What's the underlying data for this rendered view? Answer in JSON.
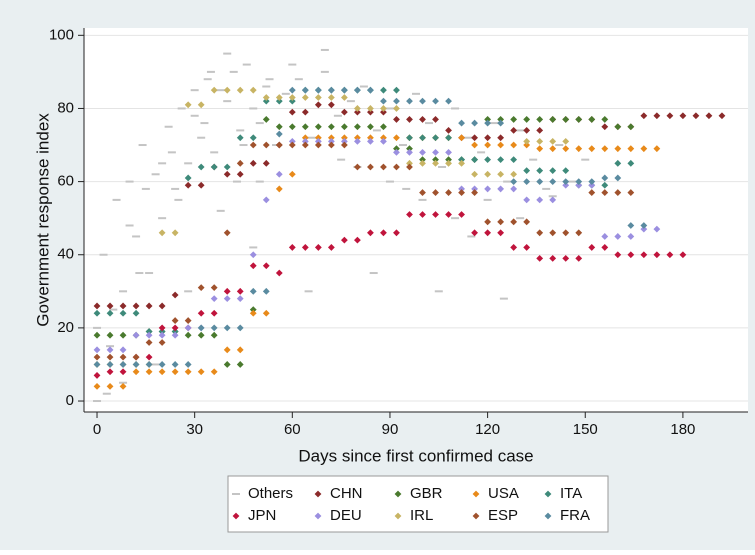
{
  "chart_data": {
    "type": "scatter",
    "x_label": "Days since first confirmed case",
    "y_label": "Government response index",
    "xlim": [
      -4,
      200
    ],
    "ylim": [
      -3,
      102
    ],
    "xticks": [
      0,
      30,
      60,
      90,
      120,
      150,
      180
    ],
    "yticks": [
      0,
      20,
      40,
      60,
      80,
      100
    ],
    "grid": true,
    "legend": "bottom",
    "series": [
      {
        "name": "Others",
        "color": "#c4c4c4",
        "x": [
          0,
          2,
          4,
          6,
          8,
          10,
          12,
          14,
          16,
          18,
          20,
          22,
          24,
          26,
          28,
          30,
          32,
          34,
          36,
          38,
          40,
          42,
          44,
          46,
          48,
          50,
          52,
          55,
          58,
          62,
          66,
          70,
          74,
          78,
          82,
          86,
          90,
          94,
          98,
          102,
          106,
          110,
          114,
          118,
          122,
          126,
          130,
          134,
          138,
          142,
          146,
          150,
          0,
          5,
          10,
          15,
          20,
          25,
          30,
          35,
          40,
          45,
          50,
          60,
          70,
          80,
          90,
          100,
          110,
          120,
          130,
          140,
          8,
          18,
          28,
          38,
          48,
          65,
          85,
          105,
          125,
          3,
          13,
          23,
          33,
          43,
          53,
          75,
          95,
          115
        ],
        "values": [
          0,
          40,
          15,
          55,
          30,
          60,
          45,
          70,
          35,
          62,
          50,
          75,
          58,
          80,
          65,
          78,
          72,
          88,
          68,
          85,
          82,
          90,
          74,
          92,
          80,
          76,
          86,
          70,
          84,
          88,
          72,
          90,
          78,
          82,
          86,
          74,
          80,
          70,
          84,
          76,
          64,
          80,
          72,
          68,
          76,
          60,
          74,
          66,
          58,
          70,
          60,
          66,
          20,
          25,
          48,
          58,
          65,
          55,
          85,
          90,
          95,
          70,
          60,
          92,
          96,
          64,
          60,
          55,
          50,
          55,
          50,
          56,
          5,
          10,
          30,
          52,
          42,
          30,
          35,
          30,
          28,
          2,
          35,
          68,
          76,
          60,
          88,
          66,
          58,
          45
        ]
      },
      {
        "name": "CHN",
        "color": "#8b2a2a",
        "x": [
          0,
          4,
          8,
          12,
          16,
          20,
          24,
          28,
          32,
          36,
          40,
          44,
          48,
          52,
          56,
          60,
          64,
          68,
          72,
          76,
          80,
          84,
          88,
          92,
          96,
          100,
          104,
          108,
          112,
          116,
          120,
          124,
          128,
          132,
          136,
          140,
          144,
          148,
          152,
          156,
          160,
          164,
          168,
          172,
          176,
          180,
          184,
          188,
          192
        ],
        "values": [
          26,
          26,
          26,
          26,
          26,
          26,
          29,
          59,
          59,
          64,
          62,
          62,
          65,
          65,
          70,
          79,
          79,
          81,
          81,
          79,
          79,
          79,
          79,
          77,
          77,
          77,
          77,
          74,
          72,
          72,
          72,
          72,
          74,
          74,
          74,
          77,
          77,
          77,
          77,
          75,
          75,
          75,
          78,
          78,
          78,
          78,
          78,
          78,
          78
        ]
      },
      {
        "name": "GBR",
        "color": "#4a7a2e",
        "x": [
          0,
          4,
          8,
          12,
          16,
          20,
          24,
          28,
          32,
          36,
          40,
          44,
          48,
          52,
          56,
          60,
          64,
          68,
          72,
          76,
          80,
          84,
          88,
          92,
          96,
          100,
          104,
          108,
          112,
          116,
          120,
          124,
          128,
          132,
          136,
          140,
          144,
          148,
          152,
          156,
          160,
          164
        ],
        "values": [
          18,
          18,
          18,
          18,
          19,
          19,
          19,
          18,
          18,
          18,
          10,
          10,
          25,
          77,
          75,
          75,
          75,
          75,
          75,
          75,
          75,
          75,
          75,
          69,
          69,
          66,
          66,
          66,
          66,
          66,
          77,
          77,
          77,
          77,
          77,
          77,
          77,
          77,
          77,
          77,
          75,
          75
        ]
      },
      {
        "name": "USA",
        "color": "#e88a1a",
        "x": [
          0,
          4,
          8,
          12,
          16,
          20,
          24,
          28,
          32,
          36,
          40,
          44,
          48,
          52,
          56,
          60,
          64,
          68,
          72,
          76,
          80,
          84,
          88,
          92,
          96,
          100,
          104,
          108,
          112,
          116,
          120,
          124,
          128,
          132,
          136,
          140,
          144,
          148,
          152,
          156,
          160,
          164,
          168,
          172
        ],
        "values": [
          4,
          4,
          4,
          8,
          8,
          8,
          8,
          8,
          8,
          8,
          14,
          14,
          24,
          24,
          58,
          62,
          72,
          72,
          72,
          72,
          72,
          72,
          72,
          72,
          72,
          72,
          72,
          72,
          72,
          70,
          70,
          70,
          70,
          70,
          69,
          69,
          69,
          69,
          69,
          69,
          69,
          69,
          69,
          69
        ]
      },
      {
        "name": "ITA",
        "color": "#3e8a7a",
        "x": [
          0,
          4,
          8,
          12,
          16,
          20,
          24,
          28,
          32,
          36,
          40,
          44,
          48,
          52,
          56,
          60,
          64,
          68,
          72,
          76,
          80,
          84,
          88,
          92,
          96,
          100,
          104,
          108,
          112,
          116,
          120,
          124,
          128,
          132,
          136,
          140,
          144,
          148,
          152,
          156,
          160,
          164
        ],
        "values": [
          24,
          24,
          24,
          24,
          19,
          19,
          19,
          61,
          64,
          64,
          64,
          72,
          72,
          82,
          82,
          82,
          85,
          85,
          85,
          85,
          85,
          85,
          85,
          85,
          72,
          72,
          72,
          72,
          66,
          66,
          66,
          66,
          66,
          63,
          63,
          63,
          63,
          59,
          59,
          59,
          65,
          65
        ]
      },
      {
        "name": "JPN",
        "color": "#c0143c",
        "x": [
          0,
          4,
          8,
          12,
          16,
          20,
          24,
          28,
          32,
          36,
          40,
          44,
          48,
          52,
          56,
          60,
          64,
          68,
          72,
          76,
          80,
          84,
          88,
          92,
          96,
          100,
          104,
          108,
          112,
          116,
          120,
          124,
          128,
          132,
          136,
          140,
          144,
          148,
          152,
          156,
          160,
          164,
          168,
          172,
          176,
          180
        ],
        "values": [
          7,
          8,
          8,
          12,
          12,
          20,
          20,
          20,
          24,
          24,
          30,
          30,
          37,
          37,
          35,
          42,
          42,
          42,
          42,
          44,
          44,
          46,
          46,
          46,
          51,
          51,
          51,
          51,
          51,
          46,
          46,
          46,
          42,
          42,
          39,
          39,
          39,
          39,
          42,
          42,
          40,
          40,
          40,
          40,
          40,
          40
        ]
      },
      {
        "name": "DEU",
        "color": "#9b8fe0",
        "x": [
          0,
          4,
          8,
          12,
          16,
          20,
          24,
          28,
          32,
          36,
          40,
          44,
          48,
          52,
          56,
          60,
          64,
          68,
          72,
          76,
          80,
          84,
          88,
          92,
          96,
          100,
          104,
          108,
          112,
          116,
          120,
          124,
          128,
          132,
          136,
          140,
          144,
          148,
          152,
          156,
          160,
          164,
          168,
          172
        ],
        "values": [
          14,
          14,
          14,
          18,
          18,
          18,
          18,
          20,
          20,
          28,
          28,
          28,
          40,
          55,
          62,
          71,
          71,
          71,
          71,
          71,
          71,
          71,
          71,
          68,
          68,
          68,
          68,
          68,
          58,
          58,
          58,
          58,
          58,
          55,
          55,
          55,
          59,
          59,
          59,
          45,
          45,
          45,
          47,
          47
        ]
      },
      {
        "name": "IRL",
        "color": "#c8b464",
        "x": [
          0,
          4,
          8,
          12,
          16,
          20,
          24,
          28,
          32,
          36,
          40,
          44,
          48,
          52,
          56,
          60,
          64,
          68,
          72,
          76,
          80,
          84,
          88,
          92,
          96,
          100,
          104,
          108,
          112,
          116,
          120,
          124,
          128,
          132,
          136,
          140,
          144
        ],
        "values": [
          10,
          10,
          10,
          10,
          10,
          46,
          46,
          81,
          81,
          85,
          85,
          85,
          85,
          83,
          83,
          83,
          83,
          83,
          83,
          83,
          80,
          80,
          80,
          80,
          65,
          65,
          65,
          65,
          65,
          62,
          62,
          62,
          62,
          71,
          71,
          71,
          71
        ]
      },
      {
        "name": "ESP",
        "color": "#a0522d",
        "x": [
          0,
          4,
          8,
          12,
          16,
          20,
          24,
          28,
          32,
          36,
          40,
          44,
          48,
          52,
          56,
          60,
          64,
          68,
          72,
          76,
          80,
          84,
          88,
          92,
          96,
          100,
          104,
          108,
          112,
          116,
          120,
          124,
          128,
          132,
          136,
          140,
          144,
          148,
          152,
          156,
          160,
          164
        ],
        "values": [
          12,
          12,
          12,
          12,
          16,
          16,
          22,
          22,
          31,
          31,
          46,
          65,
          70,
          70,
          70,
          70,
          70,
          70,
          70,
          70,
          64,
          64,
          64,
          64,
          64,
          57,
          57,
          57,
          57,
          57,
          49,
          49,
          49,
          49,
          46,
          46,
          46,
          46,
          57,
          57,
          57,
          57
        ]
      },
      {
        "name": "FRA",
        "color": "#5a8ba0",
        "x": [
          0,
          4,
          8,
          12,
          16,
          20,
          24,
          28,
          32,
          36,
          40,
          44,
          48,
          52,
          56,
          60,
          64,
          68,
          72,
          76,
          80,
          84,
          88,
          92,
          96,
          100,
          104,
          108,
          112,
          116,
          120,
          124,
          128,
          132,
          136,
          140,
          144,
          148,
          152,
          156,
          160,
          164,
          168
        ],
        "values": [
          10,
          10,
          10,
          10,
          10,
          10,
          10,
          10,
          20,
          20,
          20,
          20,
          30,
          30,
          73,
          85,
          85,
          85,
          85,
          85,
          85,
          85,
          82,
          82,
          82,
          82,
          82,
          82,
          76,
          76,
          76,
          76,
          60,
          60,
          60,
          60,
          60,
          60,
          60,
          61,
          61,
          48,
          48
        ]
      }
    ]
  }
}
